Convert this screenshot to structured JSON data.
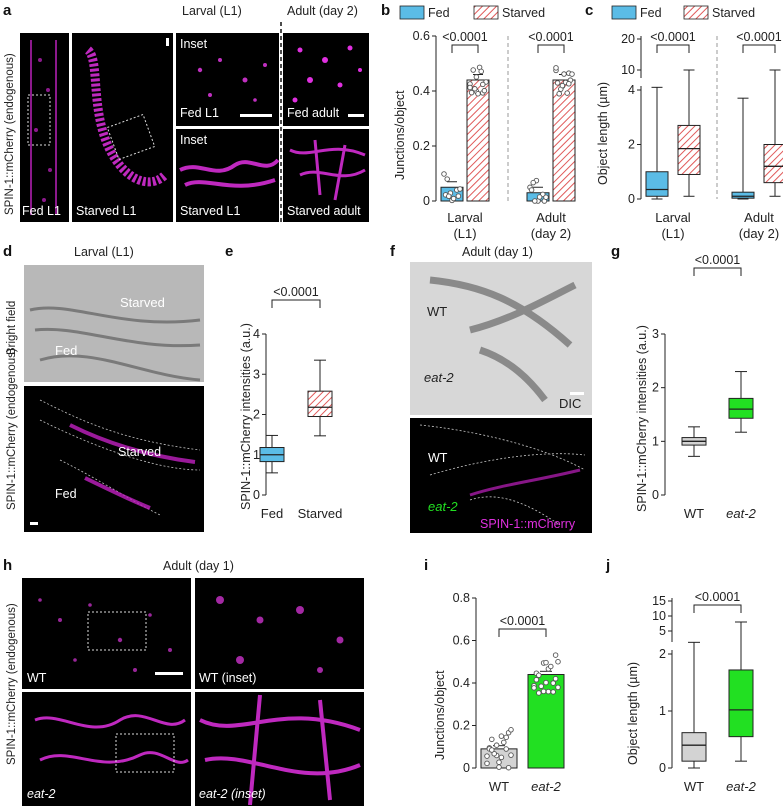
{
  "colors": {
    "fed": "#5bbce6",
    "starved": "#f08a8a",
    "wt": "#d3d3d3",
    "eat2": "#22e022",
    "magenta": "#e030e0",
    "black": "#000000"
  },
  "panel_letters": {
    "a": "a",
    "b": "b",
    "c": "c",
    "d": "d",
    "e": "e",
    "f": "f",
    "g": "g",
    "h": "h",
    "i": "i",
    "j": "j"
  },
  "panel_a": {
    "ylabel": "SPIN-1::mCherry (endogenous)",
    "header_larval": "Larval (L1)",
    "header_adult": "Adult (day 2)",
    "fed_l1": "Fed L1",
    "starved_l1": "Starved L1",
    "inset_top": "Inset",
    "inset_bottom": "Inset",
    "fed_l1_inset": "Fed L1",
    "starved_l1_inset": "Starved L1",
    "fed_adult": "Fed adult",
    "starved_adult": "Starved adult"
  },
  "legend": {
    "fed": "Fed",
    "starved": "Starved"
  },
  "panel_d": {
    "header": "Larval (L1)",
    "bright_field": "Bright field",
    "ylabel": "SPIN-1::mCherry (endogenous)",
    "starved_top": "Starved",
    "fed_top": "Fed",
    "starved_bottom": "Starved",
    "fed_bottom": "Fed"
  },
  "panel_f": {
    "header": "Adult (day 1)",
    "wt_top": "WT",
    "eat2_top": "eat-2",
    "dic": "DIC",
    "wt_bottom": "WT",
    "eat2_bottom": "eat-2",
    "spin": "SPIN-1::mCherry"
  },
  "panel_h": {
    "header": "Adult (day 1)",
    "ylabel": "SPIN-1::mCherry (endogenous)",
    "wt": "WT",
    "wt_inset": "WT (inset)",
    "eat2": "eat-2",
    "eat2_inset": "eat-2 (inset)"
  },
  "chart_data": [
    {
      "id": "b",
      "type": "bar",
      "ylabel": "Junctions/object",
      "categories": [
        "Larval (L1)",
        "Adult (day 2)"
      ],
      "series": [
        {
          "name": "Fed",
          "values": [
            0.05,
            0.03
          ]
        },
        {
          "name": "Starved",
          "values": [
            0.44,
            0.44
          ]
        }
      ],
      "ylim": [
        0,
        0.6
      ],
      "yticks": [
        "0",
        "0.2",
        "0.4",
        "0.6"
      ],
      "pvalues": [
        "<0.0001",
        "<0.0001"
      ]
    },
    {
      "id": "c",
      "type": "box",
      "ylabel": "Object length (µm)",
      "categories": [
        "Larval (L1)",
        "Adult (day 2)"
      ],
      "series": [
        {
          "name": "Fed",
          "boxes": [
            {
              "min": 0,
              "q1": 0.1,
              "median": 0.35,
              "q3": 1.0,
              "max": 6
            },
            {
              "min": 0,
              "q1": 0.03,
              "median": 0.1,
              "q3": 0.25,
              "max": 3.7
            }
          ]
        },
        {
          "name": "Starved",
          "boxes": [
            {
              "min": 0.1,
              "q1": 0.9,
              "median": 1.85,
              "q3": 2.7,
              "max": 10
            },
            {
              "min": 0.1,
              "q1": 0.6,
              "median": 1.2,
              "q3": 2.0,
              "max": 10
            }
          ]
        }
      ],
      "yticks": [
        "0",
        "2",
        "4",
        "10",
        "20"
      ],
      "pvalues": [
        "<0.0001",
        "<0.0001"
      ]
    },
    {
      "id": "e",
      "type": "box",
      "ylabel": "SPIN-1::mCherry intensities (a.u.)",
      "categories": [
        "Fed",
        "Starved"
      ],
      "boxes": [
        {
          "min": 0.55,
          "q1": 0.83,
          "median": 1.0,
          "q3": 1.18,
          "max": 1.48
        },
        {
          "min": 1.47,
          "q1": 1.95,
          "median": 2.18,
          "q3": 2.58,
          "max": 3.35
        }
      ],
      "ylim": [
        0,
        4
      ],
      "yticks": [
        "0",
        "1",
        "2",
        "3",
        "4"
      ],
      "pvalue": "<0.0001"
    },
    {
      "id": "g",
      "type": "box",
      "ylabel": "SPIN-1::mCherry intensities (a.u.)",
      "categories": [
        "WT",
        "eat-2"
      ],
      "boxes": [
        {
          "min": 0.72,
          "q1": 0.93,
          "median": 1.0,
          "q3": 1.07,
          "max": 1.27
        },
        {
          "min": 1.17,
          "q1": 1.43,
          "median": 1.6,
          "q3": 1.8,
          "max": 2.3
        }
      ],
      "ylim": [
        0,
        3
      ],
      "yticks": [
        "0",
        "1",
        "2",
        "3"
      ],
      "pvalue": "<0.0001"
    },
    {
      "id": "i",
      "type": "bar",
      "ylabel": "Junctions/object",
      "categories": [
        "WT",
        "eat-2"
      ],
      "values": [
        0.09,
        0.44
      ],
      "ylim": [
        0,
        0.8
      ],
      "yticks": [
        "0",
        "0.2",
        "0.4",
        "0.6",
        "0.8"
      ],
      "pvalue": "<0.0001"
    },
    {
      "id": "j",
      "type": "box",
      "ylabel": "Object length (µm)",
      "categories": [
        "WT",
        "eat-2"
      ],
      "boxes": [
        {
          "min": 0,
          "q1": 0.12,
          "median": 0.4,
          "q3": 0.62,
          "max": 4.5
        },
        {
          "min": 0.12,
          "q1": 0.55,
          "median": 1.02,
          "q3": 1.72,
          "max": 8
        }
      ],
      "yticks": [
        "0",
        "1",
        "2",
        "5",
        "10",
        "15"
      ],
      "pvalue": "<0.0001"
    }
  ]
}
